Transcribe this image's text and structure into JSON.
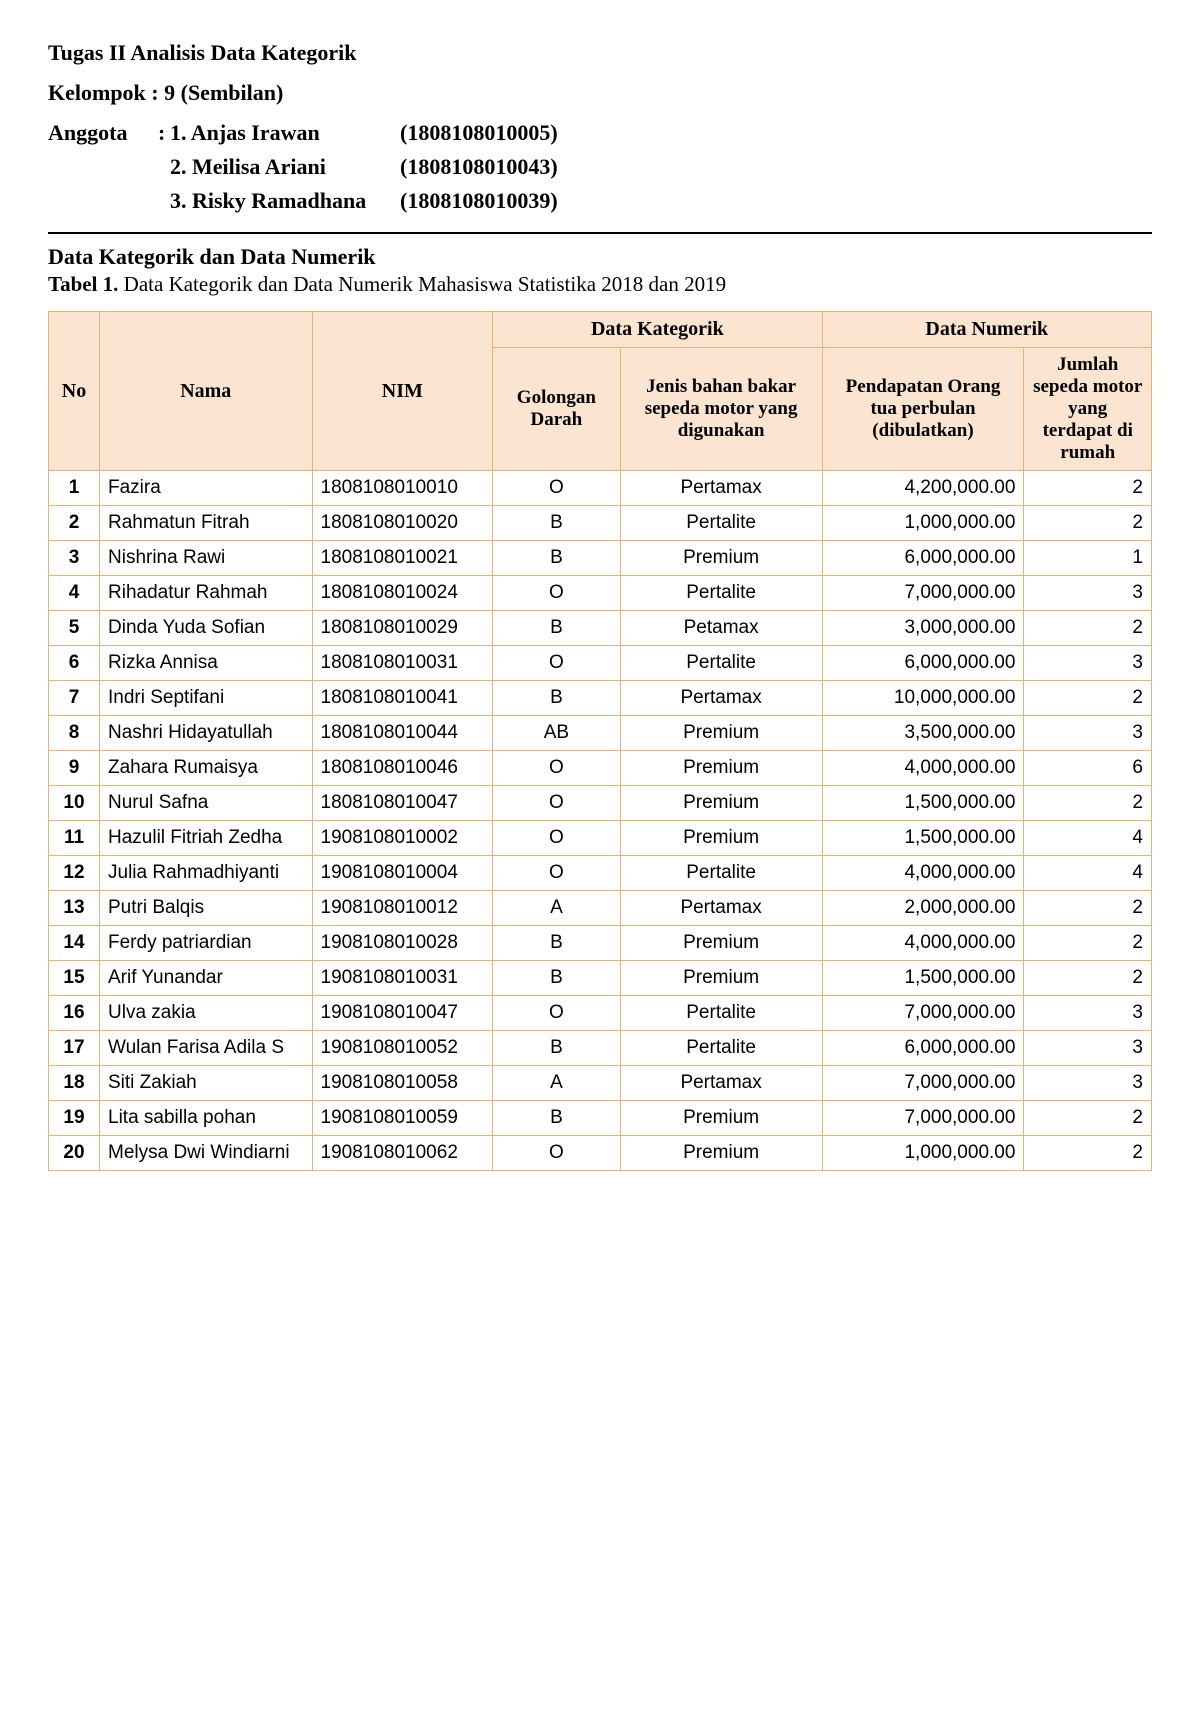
{
  "header": {
    "title": "Tugas II Analisis Data Kategorik",
    "kelompok_label": "Kelompok : 9 (Sembilan)",
    "anggota_label": "Anggota",
    "members": [
      {
        "name": "1. Anjas Irawan",
        "nim": "(1808108010005)"
      },
      {
        "name": "2. Meilisa Ariani",
        "nim": "(1808108010043)"
      },
      {
        "name": "3. Risky Ramadhana",
        "nim": "(1808108010039)"
      }
    ]
  },
  "section": {
    "title": "Data Kategorik dan Data Numerik",
    "caption_bold": "Tabel 1.",
    "caption_rest": " Data Kategorik dan  Data  Numerik Mahasiswa Statistika 2018 dan 2019"
  },
  "table": {
    "group_headers": {
      "kategorik": "Data Kategorik",
      "numerik": "Data Numerik"
    },
    "columns": {
      "no": "No",
      "nama": "Nama",
      "nim": "NIM",
      "golongan_darah": "Golongan Darah",
      "jenis_bahan": "Jenis bahan bakar sepeda motor yang digunakan",
      "pendapatan": "Pendapatan Orang tua perbulan (dibulatkan)",
      "jumlah": "Jumlah sepeda motor yang terdapat di rumah"
    },
    "rows": [
      {
        "no": "1",
        "nama": "Fazira",
        "nim": "1808108010010",
        "gd": "O",
        "jb": "Pertamax",
        "pd": "4,200,000.00",
        "jm": "2"
      },
      {
        "no": "2",
        "nama": "Rahmatun Fitrah",
        "nim": "1808108010020",
        "gd": "B",
        "jb": "Pertalite",
        "pd": "1,000,000.00",
        "jm": "2"
      },
      {
        "no": "3",
        "nama": "Nishrina Rawi",
        "nim": "1808108010021",
        "gd": "B",
        "jb": "Premium",
        "pd": "6,000,000.00",
        "jm": "1"
      },
      {
        "no": "4",
        "nama": "Rihadatur Rahmah",
        "nim": "1808108010024",
        "gd": "O",
        "jb": "Pertalite",
        "pd": "7,000,000.00",
        "jm": "3"
      },
      {
        "no": "5",
        "nama": "Dinda Yuda Sofian",
        "nim": "1808108010029",
        "gd": "B",
        "jb": "Petamax",
        "pd": "3,000,000.00",
        "jm": "2"
      },
      {
        "no": "6",
        "nama": "Rizka Annisa",
        "nim": "1808108010031",
        "gd": "O",
        "jb": "Pertalite",
        "pd": "6,000,000.00",
        "jm": "3"
      },
      {
        "no": "7",
        "nama": "Indri Septifani",
        "nim": "1808108010041",
        "gd": "B",
        "jb": "Pertamax",
        "pd": "10,000,000.00",
        "jm": "2"
      },
      {
        "no": "8",
        "nama": "Nashri Hidayatullah",
        "nim": "1808108010044",
        "gd": "AB",
        "jb": "Premium",
        "pd": "3,500,000.00",
        "jm": "3"
      },
      {
        "no": "9",
        "nama": "Zahara Rumaisya",
        "nim": "1808108010046",
        "gd": "O",
        "jb": "Premium",
        "pd": "4,000,000.00",
        "jm": "6"
      },
      {
        "no": "10",
        "nama": "Nurul Safna",
        "nim": "1808108010047",
        "gd": "O",
        "jb": "Premium",
        "pd": "1,500,000.00",
        "jm": "2"
      },
      {
        "no": "11",
        "nama": "Hazulil Fitriah Zedha",
        "nim": "1908108010002",
        "gd": "O",
        "jb": "Premium",
        "pd": "1,500,000.00",
        "jm": "4"
      },
      {
        "no": "12",
        "nama": "Julia Rahmadhiyanti",
        "nim": "1908108010004",
        "gd": "O",
        "jb": "Pertalite",
        "pd": "4,000,000.00",
        "jm": "4"
      },
      {
        "no": "13",
        "nama": "Putri Balqis",
        "nim": "1908108010012",
        "gd": "A",
        "jb": "Pertamax",
        "pd": "2,000,000.00",
        "jm": "2"
      },
      {
        "no": "14",
        "nama": "Ferdy patriardian",
        "nim": "1908108010028",
        "gd": "B",
        "jb": "Premium",
        "pd": "4,000,000.00",
        "jm": "2"
      },
      {
        "no": "15",
        "nama": "Arif Yunandar",
        "nim": "1908108010031",
        "gd": "B",
        "jb": "Premium",
        "pd": "1,500,000.00",
        "jm": "2"
      },
      {
        "no": "16",
        "nama": "Ulva zakia",
        "nim": "1908108010047",
        "gd": "O",
        "jb": "Pertalite",
        "pd": "7,000,000.00",
        "jm": "3"
      },
      {
        "no": "17",
        "nama": "Wulan Farisa Adila S",
        "nim": "1908108010052",
        "gd": "B",
        "jb": "Pertalite",
        "pd": "6,000,000.00",
        "jm": "3"
      },
      {
        "no": "18",
        "nama": "Siti Zakiah",
        "nim": "1908108010058",
        "gd": "A",
        "jb": "Pertamax",
        "pd": "7,000,000.00",
        "jm": "3"
      },
      {
        "no": "19",
        "nama": "Lita sabilla pohan",
        "nim": "1908108010059",
        "gd": "B",
        "jb": "Premium",
        "pd": "7,000,000.00",
        "jm": "2"
      },
      {
        "no": "20",
        "nama": "Melysa Dwi Windiarni",
        "nim": "1908108010062",
        "gd": "O",
        "jb": "Premium",
        "pd": "1,000,000.00",
        "jm": "2"
      }
    ],
    "styling": {
      "header_bg": "#fbe4d0",
      "border_color": "#e9b27a",
      "body_font": "Arial",
      "header_font": "Times New Roman"
    }
  }
}
